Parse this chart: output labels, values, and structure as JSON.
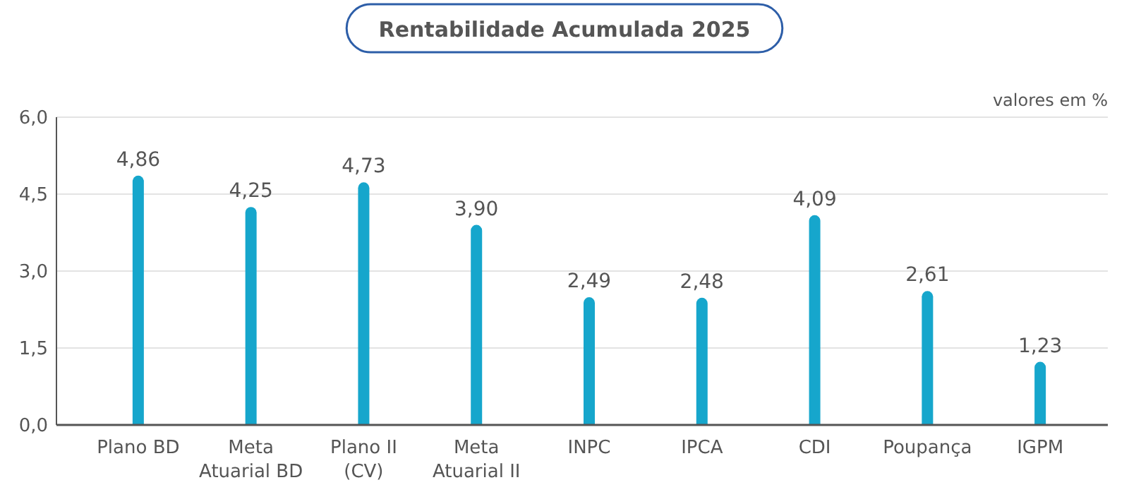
{
  "chart_data": {
    "type": "bar",
    "title": "Rentabilidade Acumulada 2025",
    "annotations": [
      "valores em %"
    ],
    "categories": [
      "Plano BD",
      "Meta Atuarial BD",
      "Plano II (CV)",
      "Meta Atuarial II",
      "INPC",
      "IPCA",
      "CDI",
      "Poupança",
      "IGPM"
    ],
    "values": [
      4.86,
      4.25,
      4.73,
      3.9,
      2.49,
      2.48,
      4.09,
      2.61,
      1.23
    ],
    "value_labels": [
      "4,86",
      "4,25",
      "4,73",
      "3,90",
      "2,49",
      "2,48",
      "4,09",
      "2,61",
      "1,23"
    ],
    "color": "#16a6cc",
    "ylim": [
      0,
      6
    ],
    "yticks": [
      {
        "value": 0,
        "label": "0,0"
      },
      {
        "value": 1.5,
        "label": "1,5"
      },
      {
        "value": 3,
        "label": "3,0"
      },
      {
        "value": 4.5,
        "label": "4,5"
      },
      {
        "value": 6,
        "label": "6,0"
      }
    ],
    "grid": "y"
  }
}
